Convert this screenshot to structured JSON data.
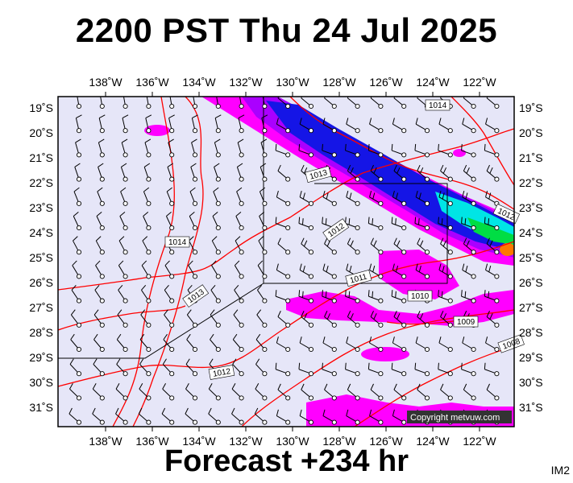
{
  "title": "2200 PST Thu 24 Jul 2025",
  "footer": "Forecast +234 hr",
  "badge": "IM2",
  "copyright": "Copyright metvuw.com",
  "colors": {
    "ocean": "#e6e6f8",
    "isobar": "#ff0000",
    "magenta": "#ff00ff",
    "purple": "#aa00ff",
    "blue": "#1515e6",
    "cyan": "#00e5e5",
    "green": "#00dd44",
    "orange": "#ff7700"
  },
  "axes": {
    "lon_labels": [
      "138˚W",
      "136˚W",
      "134˚W",
      "132˚W",
      "130˚W",
      "128˚W",
      "126˚W",
      "124˚W",
      "122˚W"
    ],
    "lat_labels": [
      "19˚S",
      "20˚S",
      "21˚S",
      "22˚S",
      "23˚S",
      "24˚S",
      "25˚S",
      "26˚S",
      "27˚S",
      "28˚S",
      "29˚S",
      "30˚S",
      "31˚S"
    ]
  },
  "isobar_labels": [
    "1014",
    "1013",
    "1012",
    "1014",
    "1013",
    "1012",
    "1011",
    "1010",
    "1009",
    "1012",
    "1008"
  ]
}
